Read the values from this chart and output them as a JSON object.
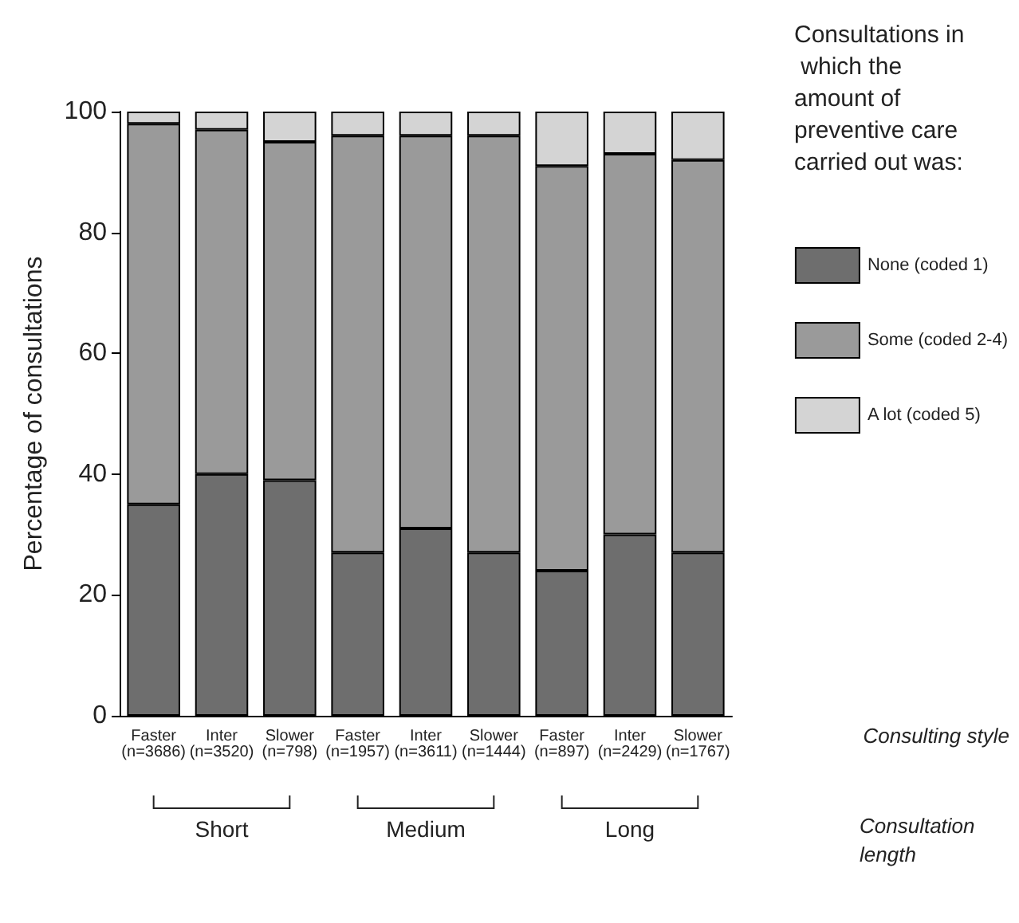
{
  "chart_data": {
    "type": "bar",
    "stacked": true,
    "ylabel": "Percentage of consultations",
    "legend_title": "Consultations in which the amount of preventive care carried out was:",
    "legend": "right",
    "grid": false,
    "categories": [
      "Faster\n(n=3686)",
      "Inter\n(n=3520)",
      "Slower\n(n=798)",
      "Faster\n(n=1957)",
      "Inter\n(n=3611)",
      "Slower\n(n=1444)",
      "Faster\n(n=897)",
      "Inter\n(n=2429)",
      "Slower\n(n=1767)"
    ],
    "series": [
      {
        "name": "None (coded 1)",
        "color": "#6e6e6e",
        "values": [
          35,
          40,
          39,
          27,
          31,
          27,
          24,
          30,
          27
        ]
      },
      {
        "name": "Some (coded 2-4)",
        "color": "#9a9a9a",
        "values": [
          63,
          57,
          56,
          69,
          65,
          69,
          67,
          63,
          65
        ]
      },
      {
        "name": "A lot (coded 5)",
        "color": "#d4d4d4",
        "values": [
          2,
          3,
          5,
          4,
          4,
          4,
          9,
          7,
          8
        ]
      }
    ],
    "ylim": [
      0,
      100
    ],
    "yticks": [
      0,
      20,
      40,
      60,
      80,
      100
    ],
    "annotations": [
      "Short",
      "Medium",
      "Long",
      "Consulting style",
      "Consultation length"
    ]
  }
}
